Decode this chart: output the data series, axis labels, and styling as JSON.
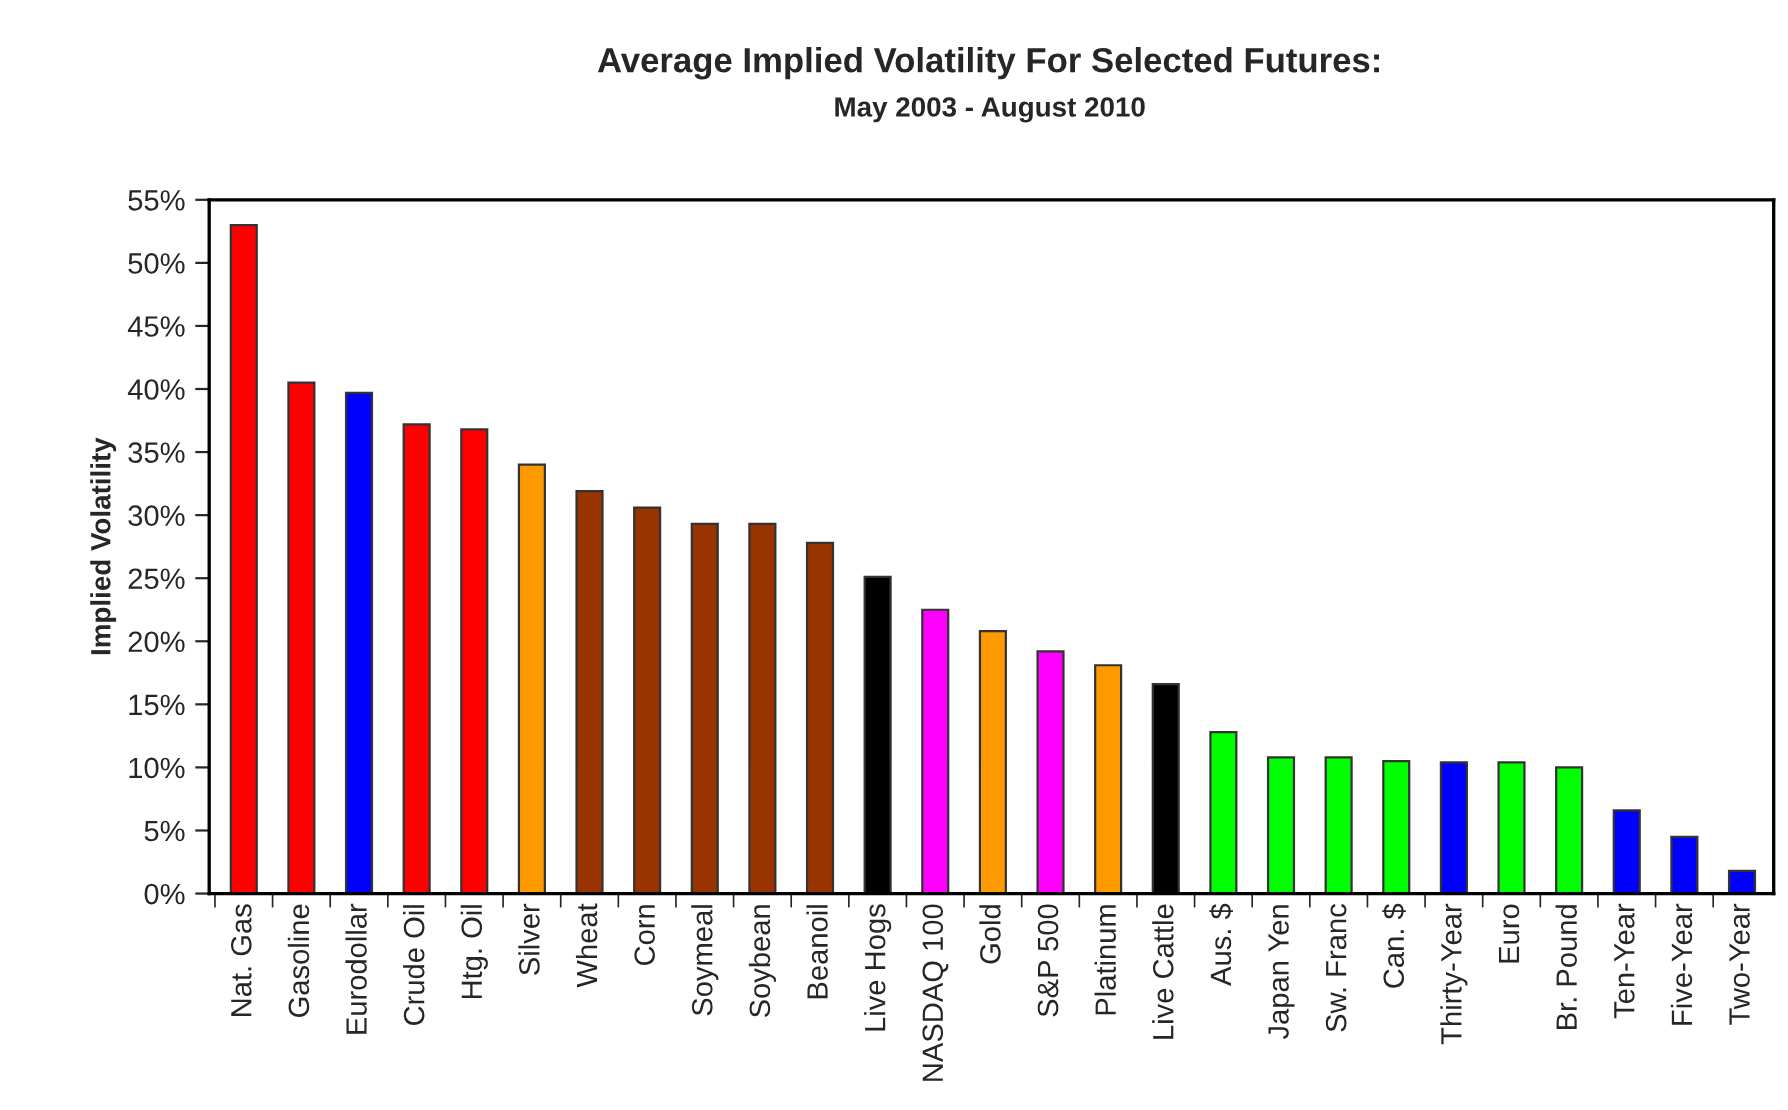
{
  "chart_data": {
    "type": "bar",
    "title": "Average Implied Volatility For Selected Futures:",
    "subtitle": "May 2003 - August 2010",
    "ylabel": "Implied Volatility",
    "categories": [
      "Nat. Gas",
      "Gasoline",
      "Eurodollar",
      "Crude Oil",
      "Htg. Oil",
      "Silver",
      "Wheat",
      "Corn",
      "Soymeal",
      "Soybean",
      "Beanoil",
      "Live Hogs",
      "NASDAQ 100",
      "Gold",
      "S&P 500",
      "Platinum",
      "Live Cattle",
      "Aus. $",
      "Japan Yen",
      "Sw. Franc",
      "Can. $",
      "Thirty-Year",
      "Euro",
      "Br. Pound",
      "Ten-Year",
      "Five-Year",
      "Two-Year"
    ],
    "values": [
      53.0,
      40.5,
      39.7,
      37.2,
      36.8,
      34.0,
      31.9,
      30.6,
      29.3,
      29.3,
      27.8,
      25.1,
      22.5,
      20.8,
      19.2,
      18.1,
      16.6,
      12.8,
      10.8,
      10.8,
      10.5,
      10.4,
      10.4,
      10.0,
      6.6,
      4.5,
      1.8
    ],
    "colors": [
      "#ff0000",
      "#ff0000",
      "#0000ff",
      "#ff0000",
      "#ff0000",
      "#ff9900",
      "#993300",
      "#993300",
      "#993300",
      "#993300",
      "#993300",
      "#000000",
      "#ff00ff",
      "#ff9900",
      "#ff00ff",
      "#ff9900",
      "#000000",
      "#00ff00",
      "#00ff00",
      "#00ff00",
      "#00ff00",
      "#0000ff",
      "#00ff00",
      "#00ff00",
      "#0000ff",
      "#0000ff",
      "#0000ff"
    ],
    "ylim": [
      0,
      55
    ],
    "yticks": [
      {
        "value": 0,
        "label": "0%"
      },
      {
        "value": 5,
        "label": "5%"
      },
      {
        "value": 10,
        "label": "10%"
      },
      {
        "value": 15,
        "label": "15%"
      },
      {
        "value": 20,
        "label": "20%"
      },
      {
        "value": 25,
        "label": "25%"
      },
      {
        "value": 30,
        "label": "30%"
      },
      {
        "value": 35,
        "label": "35%"
      },
      {
        "value": 40,
        "label": "40%"
      },
      {
        "value": 45,
        "label": "45%"
      },
      {
        "value": 50,
        "label": "50%"
      },
      {
        "value": 55,
        "label": "55%"
      }
    ],
    "grid": false,
    "legend": false
  }
}
